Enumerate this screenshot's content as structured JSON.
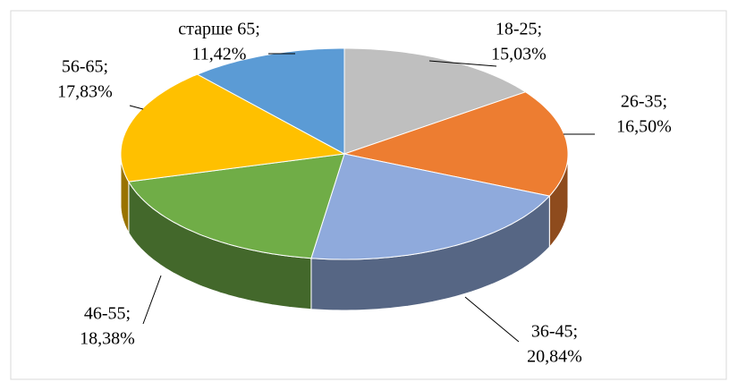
{
  "chart_data": {
    "type": "pie3d",
    "categories": [
      "18-25;",
      "26-35;",
      "36-45;",
      "46-55;",
      "56-65;",
      "старше 65;"
    ],
    "values": [
      15.03,
      16.5,
      20.84,
      18.38,
      17.83,
      11.42
    ],
    "value_labels": [
      "15,03%",
      "16,50%",
      "20,84%",
      "18,38%",
      "17,83%",
      "11,42%"
    ],
    "colors": [
      "#bfbfbf",
      "#ed7d31",
      "#8faadc",
      "#70ad47",
      "#ffc000",
      "#5b9bd5"
    ]
  }
}
